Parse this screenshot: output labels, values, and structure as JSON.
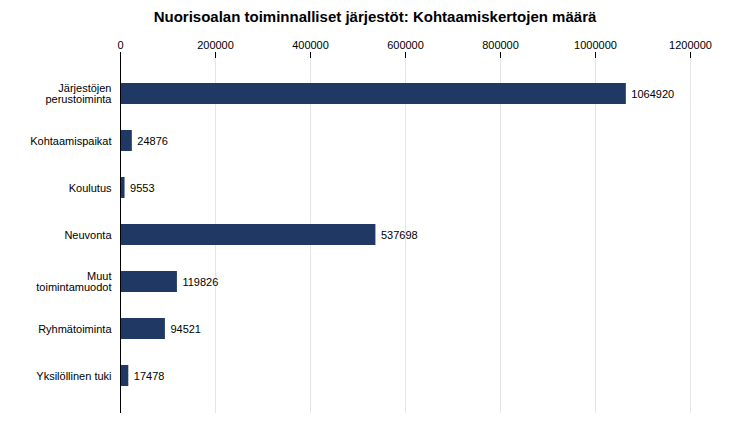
{
  "chart_data": {
    "type": "bar",
    "orientation": "horizontal",
    "title": "Nuorisoalan toiminnalliset järjestöt: Kohtaamiskertojen määrä",
    "categories": [
      "Järjestöjen\nperustoiminta",
      "Kohtaamispaikat",
      "Koulutus",
      "Neuvonta",
      "Muut\ntoimintamuodot",
      "Ryhmätoiminta",
      "Yksilöllinen tuki"
    ],
    "values": [
      1064920,
      24876,
      9553,
      537698,
      119826,
      94521,
      17478
    ],
    "color": "#1F3864",
    "xlim": [
      0,
      1200000
    ],
    "xticks": [
      0,
      200000,
      400000,
      600000,
      800000,
      1000000,
      1200000
    ],
    "grid": true,
    "data_labels": true
  }
}
